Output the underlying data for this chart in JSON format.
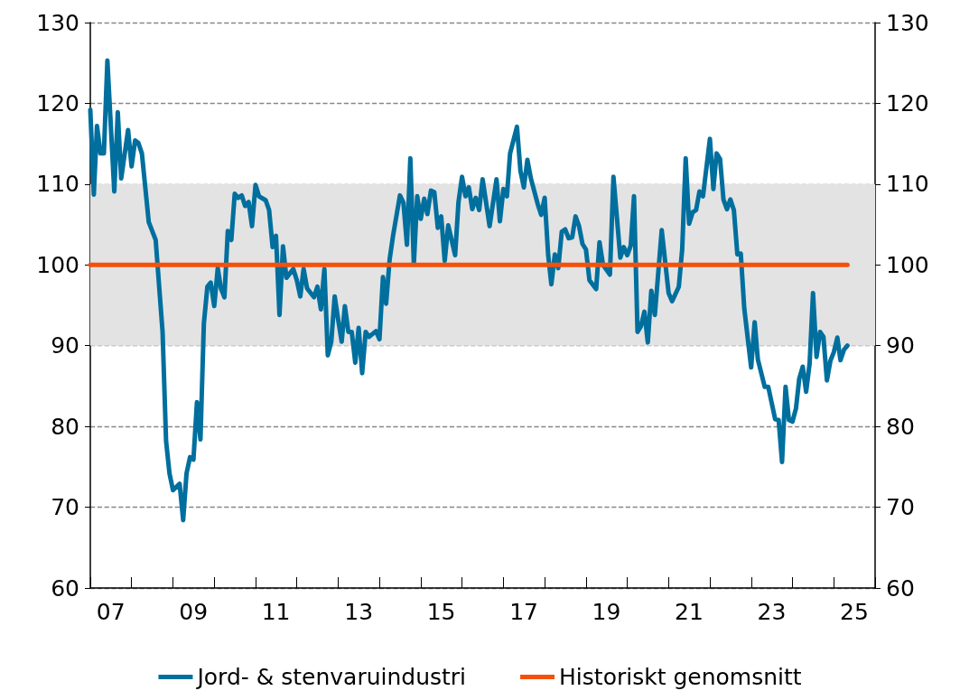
{
  "chart_data": {
    "type": "line",
    "x": [
      "2007-01",
      "2007-02",
      "2007-03",
      "2007-04",
      "2007-05",
      "2007-06",
      "2007-08",
      "2007-09",
      "2007-10",
      "2007-12",
      "2008-01",
      "2008-02",
      "2008-03",
      "2008-04",
      "2008-06",
      "2008-08",
      "2008-10",
      "2008-11",
      "2008-12",
      "2009-01",
      "2009-03",
      "2009-04",
      "2009-05",
      "2009-06",
      "2009-07",
      "2009-08",
      "2009-09",
      "2009-10",
      "2009-11",
      "2009-12",
      "2010-01",
      "2010-02",
      "2010-03",
      "2010-04",
      "2010-05",
      "2010-06",
      "2010-07",
      "2010-08",
      "2010-09",
      "2010-10",
      "2010-11",
      "2010-12",
      "2011-01",
      "2011-02",
      "2011-04",
      "2011-05",
      "2011-06",
      "2011-07",
      "2011-08",
      "2011-09",
      "2011-10",
      "2011-12",
      "2012-01",
      "2012-02",
      "2012-03",
      "2012-04",
      "2012-06",
      "2012-07",
      "2012-08",
      "2012-09",
      "2012-10",
      "2012-11",
      "2012-12",
      "2013-01",
      "2013-02",
      "2013-03",
      "2013-04",
      "2013-05",
      "2013-06",
      "2013-07",
      "2013-08",
      "2013-09",
      "2013-10",
      "2013-12",
      "2014-01",
      "2014-02",
      "2014-03",
      "2014-04",
      "2014-05",
      "2014-07",
      "2014-08",
      "2014-09",
      "2014-10",
      "2014-11",
      "2014-12",
      "2015-01",
      "2015-02",
      "2015-03",
      "2015-04",
      "2015-05",
      "2015-06",
      "2015-07",
      "2015-08",
      "2015-09",
      "2015-11",
      "2015-12",
      "2016-01",
      "2016-02",
      "2016-03",
      "2016-04",
      "2016-05",
      "2016-06",
      "2016-07",
      "2016-09",
      "2016-11",
      "2016-12",
      "2017-01",
      "2017-02",
      "2017-03",
      "2017-05",
      "2017-06",
      "2017-07",
      "2017-08",
      "2017-09",
      "2017-11",
      "2017-12",
      "2018-01",
      "2018-02",
      "2018-03",
      "2018-04",
      "2018-05",
      "2018-06",
      "2018-07",
      "2018-08",
      "2018-09",
      "2018-10",
      "2018-11",
      "2018-12",
      "2019-01",
      "2019-02",
      "2019-04",
      "2019-05",
      "2019-06",
      "2019-08",
      "2019-09",
      "2019-11",
      "2019-12",
      "2020-01",
      "2020-02",
      "2020-03",
      "2020-04",
      "2020-05",
      "2020-06",
      "2020-07",
      "2020-08",
      "2020-09",
      "2020-11",
      "2021-01",
      "2021-02",
      "2021-04",
      "2021-05",
      "2021-06",
      "2021-07",
      "2021-08",
      "2021-09",
      "2021-10",
      "2021-11",
      "2022-01",
      "2022-02",
      "2022-03",
      "2022-04",
      "2022-05",
      "2022-06",
      "2022-07",
      "2022-08",
      "2022-09",
      "2022-10",
      "2022-11",
      "2023-01",
      "2023-02",
      "2023-03",
      "2023-05",
      "2023-06",
      "2023-08",
      "2023-09",
      "2023-10",
      "2023-11",
      "2023-12",
      "2024-01",
      "2024-02",
      "2024-03",
      "2024-04",
      "2024-05",
      "2024-06",
      "2024-07",
      "2024-08",
      "2024-09",
      "2024-10",
      "2024-11",
      "2024-12",
      "2025-01",
      "2025-02",
      "2025-03",
      "2025-04",
      "2025-05"
    ],
    "series": [
      {
        "name": "Jord- & stenvaruindustri",
        "color": "#006f9e",
        "values": [
          119.2,
          108.7,
          117.2,
          113.8,
          113.8,
          125.3,
          109.1,
          118.9,
          110.7,
          116.7,
          112.2,
          115.4,
          115.1,
          113.8,
          105.3,
          103.1,
          91.7,
          78.2,
          74.2,
          72.1,
          72.9,
          68.4,
          74.2,
          76.2,
          75.9,
          83.0,
          78.4,
          92.7,
          97.3,
          97.8,
          94.9,
          99.6,
          97.1,
          96.0,
          104.2,
          103.1,
          108.8,
          108.3,
          108.6,
          107.3,
          107.8,
          104.8,
          109.9,
          108.5,
          108.0,
          106.8,
          102.2,
          103.6,
          93.8,
          102.3,
          98.4,
          99.5,
          98.1,
          96.1,
          99.5,
          97.1,
          96.0,
          97.3,
          94.5,
          99.5,
          88.8,
          90.5,
          96.1,
          93.2,
          90.5,
          94.9,
          91.7,
          91.7,
          87.9,
          92.2,
          86.6,
          91.7,
          91.1,
          91.8,
          90.8,
          98.5,
          95.2,
          100.7,
          103.6,
          108.6,
          107.7,
          102.5,
          113.2,
          100.1,
          108.5,
          105.7,
          108.2,
          106.3,
          109.2,
          109.0,
          104.6,
          106.0,
          100.5,
          104.9,
          101.2,
          107.8,
          110.9,
          108.5,
          109.6,
          106.9,
          108.3,
          106.8,
          110.6,
          104.8,
          110.6,
          105.4,
          109.4,
          108.5,
          113.8,
          117.1,
          111.6,
          109.6,
          113.0,
          110.7,
          107.5,
          106.2,
          108.3,
          101.2,
          97.6,
          101.3,
          99.6,
          104.1,
          104.4,
          103.3,
          103.4,
          106.0,
          104.8,
          102.6,
          101.9,
          98.1,
          97.0,
          102.8,
          100.0,
          98.8,
          110.9,
          100.9,
          102.2,
          101.2,
          102.4,
          108.5,
          91.7,
          92.4,
          94.2,
          90.4,
          96.8,
          93.8,
          104.3,
          96.5,
          95.5,
          97.3,
          101.9,
          113.2,
          105.1,
          106.5,
          106.8,
          109.1,
          108.5,
          115.6,
          109.4,
          113.8,
          113.1,
          108.1,
          106.9,
          108.1,
          106.8,
          101.3,
          101.4,
          94.6,
          87.3,
          92.9,
          88.3,
          84.9,
          84.9,
          80.9,
          80.8,
          75.6,
          84.9,
          80.8,
          80.6,
          82.2,
          85.9,
          87.4,
          84.3,
          87.8,
          96.5,
          88.6,
          91.7,
          91.1,
          85.7,
          88.1,
          89.2,
          91.0,
          88.2,
          89.5,
          90.0
        ]
      },
      {
        "name": "Historiskt genomsnitt",
        "color": "#f5500a",
        "x": [
          "2007-01",
          "2025-05"
        ],
        "values": [
          100,
          100
        ]
      }
    ],
    "xlim": [
      "2007-01",
      "2026-01"
    ],
    "xticks": [
      {
        "value": "2007-01",
        "label": null
      },
      {
        "value": "2007-07",
        "label": "07"
      },
      {
        "value": "2008-01",
        "label": null
      },
      {
        "value": "2009-01",
        "label": null
      },
      {
        "value": "2009-07",
        "label": "09"
      },
      {
        "value": "2010-01",
        "label": null
      },
      {
        "value": "2011-01",
        "label": null
      },
      {
        "value": "2011-07",
        "label": "11"
      },
      {
        "value": "2012-01",
        "label": null
      },
      {
        "value": "2013-01",
        "label": null
      },
      {
        "value": "2013-07",
        "label": "13"
      },
      {
        "value": "2014-01",
        "label": null
      },
      {
        "value": "2015-01",
        "label": null
      },
      {
        "value": "2015-07",
        "label": "15"
      },
      {
        "value": "2016-01",
        "label": null
      },
      {
        "value": "2017-01",
        "label": null
      },
      {
        "value": "2017-07",
        "label": "17"
      },
      {
        "value": "2018-01",
        "label": null
      },
      {
        "value": "2019-01",
        "label": null
      },
      {
        "value": "2019-07",
        "label": "19"
      },
      {
        "value": "2020-01",
        "label": null
      },
      {
        "value": "2021-01",
        "label": null
      },
      {
        "value": "2021-07",
        "label": "21"
      },
      {
        "value": "2022-01",
        "label": null
      },
      {
        "value": "2023-01",
        "label": null
      },
      {
        "value": "2023-07",
        "label": "23"
      },
      {
        "value": "2024-01",
        "label": null
      },
      {
        "value": "2025-01",
        "label": null
      },
      {
        "value": "2025-07",
        "label": "25"
      },
      {
        "value": "2026-01",
        "label": null
      }
    ],
    "ylim": [
      60,
      130
    ],
    "yticks": [
      60,
      70,
      80,
      90,
      100,
      110,
      120,
      130
    ],
    "y2lim": [
      60,
      130
    ],
    "y2ticks": [
      60,
      70,
      80,
      90,
      100,
      110,
      120,
      130
    ],
    "bands": [
      {
        "axis": "y",
        "from": 90,
        "to": 110,
        "color": "#e3e3e3"
      }
    ],
    "grid": "y",
    "legend": "bottom",
    "marker": "none",
    "line_style": "solid"
  }
}
